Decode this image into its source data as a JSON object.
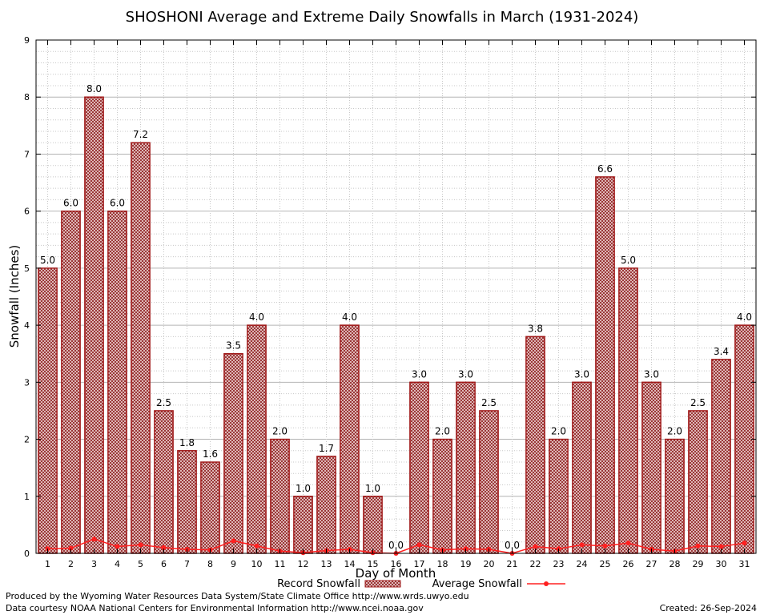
{
  "chart_data": {
    "type": "bar",
    "title": "SHOSHONI Average and Extreme Daily Snowfalls in March (1931-2024)",
    "xlabel": "Day of Month",
    "ylabel": "Snowfall (Inches)",
    "ylim": [
      0,
      9
    ],
    "yticks": [
      "0",
      "1",
      "2",
      "3",
      "4",
      "5",
      "6",
      "7",
      "8",
      "9"
    ],
    "grid": true,
    "categories": [
      "1",
      "2",
      "3",
      "4",
      "5",
      "6",
      "7",
      "8",
      "9",
      "10",
      "11",
      "12",
      "13",
      "14",
      "15",
      "16",
      "17",
      "18",
      "19",
      "20",
      "21",
      "22",
      "23",
      "24",
      "25",
      "26",
      "27",
      "28",
      "29",
      "30",
      "31"
    ],
    "series": [
      {
        "name": "Record Snowfall",
        "kind": "bar",
        "color": "#b22222",
        "values": [
          5.0,
          6.0,
          8.0,
          6.0,
          7.2,
          2.5,
          1.8,
          1.6,
          3.5,
          4.0,
          2.0,
          1.0,
          1.7,
          4.0,
          1.0,
          0.0,
          3.0,
          2.0,
          3.0,
          2.5,
          0.0,
          3.8,
          2.0,
          3.0,
          6.6,
          5.0,
          3.0,
          2.0,
          2.5,
          3.4,
          4.0
        ],
        "labels": [
          "5.0",
          "6.0",
          "8.0",
          "6.0",
          "7.2",
          "2.5",
          "1.8",
          "1.6",
          "3.5",
          "4.0",
          "2.0",
          "1.0",
          "1.7",
          "4.0",
          "1.0",
          "0.0",
          "3.0",
          "2.0",
          "3.0",
          "2.5",
          "0.0",
          "3.8",
          "2.0",
          "3.0",
          "6.6",
          "5.0",
          "3.0",
          "2.0",
          "2.5",
          "3.4",
          "4.0"
        ]
      },
      {
        "name": "Average Snowfall",
        "kind": "line",
        "color": "#ff2020",
        "values": [
          0.08,
          0.09,
          0.25,
          0.12,
          0.15,
          0.1,
          0.07,
          0.06,
          0.22,
          0.13,
          0.04,
          0.01,
          0.05,
          0.07,
          0.01,
          0.0,
          0.15,
          0.06,
          0.08,
          0.07,
          0.0,
          0.12,
          0.08,
          0.15,
          0.13,
          0.18,
          0.07,
          0.04,
          0.13,
          0.12,
          0.18
        ]
      }
    ],
    "legend": {
      "placement": "bottom-center"
    }
  },
  "footer": {
    "produced_by": "Produced by the Wyoming Water Resources Data System/State Climate Office http://www.wrds.uwyo.edu",
    "courtesy": "Data courtesy NOAA National Centers for Environmental Information http://www.ncei.noaa.gov",
    "created": "Created:  26-Sep-2024"
  }
}
